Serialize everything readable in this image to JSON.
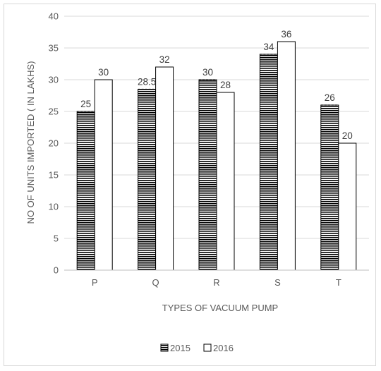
{
  "chart_data": {
    "type": "bar",
    "title": "",
    "xlabel": "TYPES OF VACUUM PUMP",
    "ylabel": "NO OF UNITS IMPORTED ( IN LAKHS)",
    "categories": [
      "P",
      "Q",
      "R",
      "S",
      "T"
    ],
    "series": [
      {
        "name": "2015",
        "values": [
          25,
          28.5,
          30,
          34,
          26
        ],
        "data_labels": [
          "25",
          "28.5",
          "30",
          "34",
          "26"
        ],
        "pattern": "horizontal-stripes"
      },
      {
        "name": "2016",
        "values": [
          30,
          32,
          28,
          36,
          20
        ],
        "data_labels": [
          "30",
          "32",
          "28",
          "36",
          "20"
        ],
        "pattern": "solid-white"
      }
    ],
    "ylim": [
      0,
      40
    ],
    "yticks": [
      "0",
      "5",
      "10",
      "15",
      "20",
      "25",
      "30",
      "35",
      "40"
    ],
    "grid": true,
    "legend_position": "bottom"
  },
  "colors": {
    "bar_outline": "#000000",
    "stripe": "#000000",
    "grid": "#d9d9d9",
    "text": "#595959"
  }
}
